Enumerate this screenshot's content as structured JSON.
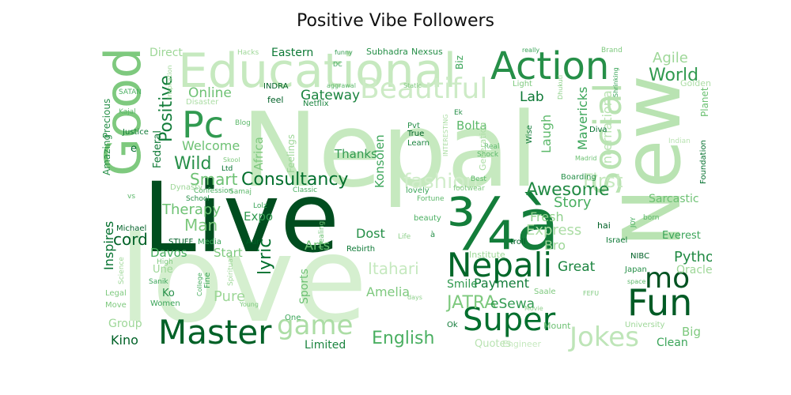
{
  "chart_data": {
    "type": "wordcloud",
    "title": "Positive Vibe Followers",
    "colormap": "Greens",
    "words": [
      {
        "text": "Nepal",
        "weight": 1.0,
        "shade": 0.15
      },
      {
        "text": "Live",
        "weight": 0.95,
        "shade": 0.97
      },
      {
        "text": "love",
        "weight": 0.8,
        "shade": 0.08
      },
      {
        "text": "New",
        "weight": 0.85,
        "shade": 0.2
      },
      {
        "text": "Educational",
        "weight": 0.55,
        "shade": 0.15
      },
      {
        "text": "Good",
        "weight": 0.55,
        "shade": 0.4
      },
      {
        "text": "Action",
        "weight": 0.4,
        "shade": 0.7
      },
      {
        "text": "¾à",
        "weight": 0.6,
        "shade": 0.78
      },
      {
        "text": "Social",
        "weight": 0.45,
        "shade": 0.2
      },
      {
        "text": "Nepali",
        "weight": 0.35,
        "shade": 0.88
      },
      {
        "text": "Fun",
        "weight": 0.4,
        "shade": 0.92
      },
      {
        "text": "Master",
        "weight": 0.35,
        "shade": 0.9
      },
      {
        "text": "Super",
        "weight": 0.32,
        "shade": 0.85
      },
      {
        "text": "mo",
        "weight": 0.3,
        "shade": 0.95
      },
      {
        "text": "Pc",
        "weight": 0.35,
        "shade": 0.65
      },
      {
        "text": "Beautiful",
        "weight": 0.3,
        "shade": 0.12
      },
      {
        "text": "Jokes",
        "weight": 0.28,
        "shade": 0.18
      },
      {
        "text": "game",
        "weight": 0.28,
        "shade": 0.25
      },
      {
        "text": "Consultancy",
        "weight": 0.2,
        "shade": 0.85
      },
      {
        "text": "Awesome",
        "weight": 0.2,
        "shade": 0.72
      },
      {
        "text": "World",
        "weight": 0.2,
        "shade": 0.65
      },
      {
        "text": "Python",
        "weight": 0.18,
        "shade": 0.72
      },
      {
        "text": "Positive",
        "weight": 0.18,
        "shade": 0.78
      },
      {
        "text": "English",
        "weight": 0.18,
        "shade": 0.55
      },
      {
        "text": "JATRA",
        "weight": 0.18,
        "shade": 0.4
      },
      {
        "text": "Wild",
        "weight": 0.16,
        "shade": 0.7
      },
      {
        "text": "Smart",
        "weight": 0.16,
        "shade": 0.45
      },
      {
        "text": "Therapy",
        "weight": 0.15,
        "shade": 0.45
      },
      {
        "text": "Man",
        "weight": 0.16,
        "shade": 0.4
      },
      {
        "text": "Agile",
        "weight": 0.13,
        "shade": 0.3
      },
      {
        "text": "Lab",
        "weight": 0.12,
        "shade": 0.8
      },
      {
        "text": "Gateway",
        "weight": 0.13,
        "shade": 0.75
      },
      {
        "text": "Online",
        "weight": 0.13,
        "shade": 0.45
      },
      {
        "text": "Welcome",
        "weight": 0.13,
        "shade": 0.45
      },
      {
        "text": "Eastern",
        "weight": 0.12,
        "shade": 0.8
      },
      {
        "text": "Direct",
        "weight": 0.12,
        "shade": 0.3
      },
      {
        "text": "Laugh",
        "weight": 0.12,
        "shade": 0.5
      },
      {
        "text": "Mavericks",
        "weight": 0.12,
        "shade": 0.6
      },
      {
        "text": "International",
        "weight": 0.12,
        "shade": 0.2
      },
      {
        "text": "fashion",
        "weight": 0.15,
        "shade": 0.1
      },
      {
        "text": "First",
        "weight": 0.15,
        "shade": 0.15
      },
      {
        "text": "Story",
        "weight": 0.12,
        "shade": 0.55
      },
      {
        "text": "Fresh",
        "weight": 0.12,
        "shade": 0.35
      },
      {
        "text": "Express",
        "weight": 0.12,
        "shade": 0.25
      },
      {
        "text": "Bro",
        "weight": 0.12,
        "shade": 0.3
      },
      {
        "text": "Great",
        "weight": 0.13,
        "shade": 0.75
      },
      {
        "text": "Payment",
        "weight": 0.12,
        "shade": 0.78
      },
      {
        "text": "Smile",
        "weight": 0.11,
        "shade": 0.65
      },
      {
        "text": "eSewa",
        "weight": 0.12,
        "shade": 0.65
      },
      {
        "text": "Amelia",
        "weight": 0.11,
        "shade": 0.4
      },
      {
        "text": "Itahari",
        "weight": 0.12,
        "shade": 0.15
      },
      {
        "text": "Limited",
        "weight": 0.1,
        "shade": 0.75
      },
      {
        "text": "Kino",
        "weight": 0.11,
        "shade": 0.9
      },
      {
        "text": "Group",
        "weight": 0.11,
        "shade": 0.3
      },
      {
        "text": "Pure",
        "weight": 0.12,
        "shade": 0.3
      },
      {
        "text": "Davos",
        "weight": 0.11,
        "shade": 0.55
      },
      {
        "text": "Start",
        "weight": 0.11,
        "shade": 0.4
      },
      {
        "text": "lyric",
        "weight": 0.13,
        "shade": 0.85
      },
      {
        "text": "Arts",
        "weight": 0.11,
        "shade": 0.45
      },
      {
        "text": "Dost",
        "weight": 0.11,
        "shade": 0.7
      },
      {
        "text": "Expo",
        "weight": 0.11,
        "shade": 0.65
      },
      {
        "text": "cord",
        "weight": 0.13,
        "shade": 0.9
      },
      {
        "text": "Inspires",
        "weight": 0.12,
        "shade": 0.85
      },
      {
        "text": "Thanks",
        "weight": 0.11,
        "shade": 0.65
      },
      {
        "text": "Konsolen",
        "weight": 0.11,
        "shade": 0.6
      },
      {
        "text": "Bolta",
        "weight": 0.11,
        "shade": 0.5
      },
      {
        "text": "Africa",
        "weight": 0.11,
        "shade": 0.4
      },
      {
        "text": "Sports",
        "weight": 0.11,
        "shade": 0.45
      },
      {
        "text": "Clean",
        "weight": 0.1,
        "shade": 0.6
      },
      {
        "text": "Big",
        "weight": 0.1,
        "shade": 0.4
      },
      {
        "text": "Everest",
        "weight": 0.09,
        "shade": 0.6
      },
      {
        "text": "Sarcastic",
        "weight": 0.1,
        "shade": 0.45
      },
      {
        "text": "Foundation",
        "weight": 0.08,
        "shade": 0.85
      },
      {
        "text": "Planet",
        "weight": 0.08,
        "shade": 0.45
      },
      {
        "text": "Biz",
        "weight": 0.09,
        "shade": 0.6
      },
      {
        "text": "Federal",
        "weight": 0.09,
        "shade": 0.8
      },
      {
        "text": "Precious",
        "weight": 0.08,
        "shade": 0.7
      },
      {
        "text": "Amazing",
        "weight": 0.08,
        "shade": 0.7
      },
      {
        "text": "Quotes",
        "weight": 0.08,
        "shade": 0.2
      },
      {
        "text": "Engineer",
        "weight": 0.07,
        "shade": 0.15
      },
      {
        "text": "Subhadra",
        "weight": 0.07,
        "shade": 0.7
      },
      {
        "text": "Nexsus",
        "weight": 0.07,
        "shade": 0.7
      },
      {
        "text": "Israel",
        "weight": 0.07,
        "shade": 0.8
      },
      {
        "text": "NIBC",
        "weight": 0.07,
        "shade": 0.9
      },
      {
        "text": "Japan",
        "weight": 0.07,
        "shade": 0.7
      },
      {
        "text": "Michael",
        "weight": 0.07,
        "shade": 0.9
      },
      {
        "text": "Women",
        "weight": 0.07,
        "shade": 0.6
      },
      {
        "text": "Move",
        "weight": 0.07,
        "shade": 0.4
      },
      {
        "text": "Legal",
        "weight": 0.07,
        "shade": 0.4
      },
      {
        "text": "Media",
        "weight": 0.07,
        "shade": 0.6
      },
      {
        "text": "STUFF",
        "weight": 0.06,
        "shade": 0.9
      },
      {
        "text": "Aur",
        "weight": 0.06,
        "shade": 0.9
      },
      {
        "text": "Rebirth",
        "weight": 0.06,
        "shade": 0.8
      },
      {
        "text": "Institute",
        "weight": 0.07,
        "shade": 0.3
      },
      {
        "text": "Mount",
        "weight": 0.07,
        "shade": 0.45
      },
      {
        "text": "troll",
        "weight": 0.06,
        "shade": 0.9
      },
      {
        "text": "hai",
        "weight": 0.07,
        "shade": 0.9
      },
      {
        "text": "Ok",
        "weight": 0.06,
        "shade": 0.8
      },
      {
        "text": "One",
        "weight": 0.06,
        "shade": 0.6
      },
      {
        "text": "INDRA",
        "weight": 0.06,
        "shade": 0.9
      },
      {
        "text": "feel",
        "weight": 0.07,
        "shade": 0.9
      },
      {
        "text": "Netflix",
        "weight": 0.06,
        "shade": 0.75
      },
      {
        "text": "True",
        "weight": 0.06,
        "shade": 0.9
      },
      {
        "text": "Learn",
        "weight": 0.06,
        "shade": 0.75
      },
      {
        "text": "Pvt",
        "weight": 0.06,
        "shade": 0.7
      },
      {
        "text": "Diva",
        "weight": 0.06,
        "shade": 0.85
      },
      {
        "text": "Wise",
        "weight": 0.06,
        "shade": 0.8
      },
      {
        "text": "Boarding",
        "weight": 0.06,
        "shade": 0.7
      },
      {
        "text": "lovely",
        "weight": 0.06,
        "shade": 0.6
      },
      {
        "text": "beauty",
        "weight": 0.06,
        "shade": 0.55
      },
      {
        "text": "Healing",
        "weight": 0.06,
        "shade": 0.45
      },
      {
        "text": "Confession",
        "weight": 0.06,
        "shade": 0.55
      },
      {
        "text": "Classic",
        "weight": 0.06,
        "shade": 0.55
      },
      {
        "text": "School",
        "weight": 0.06,
        "shade": 0.7
      },
      {
        "text": "Lolz",
        "weight": 0.06,
        "shade": 0.6
      },
      {
        "text": "Justice",
        "weight": 0.06,
        "shade": 0.8
      },
      {
        "text": "SATAN",
        "weight": 0.06,
        "shade": 0.55
      },
      {
        "text": "Kajal",
        "weight": 0.06,
        "shade": 0.5
      },
      {
        "text": "Sanik",
        "weight": 0.06,
        "shade": 0.6
      },
      {
        "text": "Ltd",
        "weight": 0.06,
        "shade": 0.85
      },
      {
        "text": "DC",
        "weight": 0.06,
        "shade": 0.6
      },
      {
        "text": "funny",
        "weight": 0.06,
        "shade": 0.65
      },
      {
        "text": "aggrawal",
        "weight": 0.06,
        "shade": 0.5
      },
      {
        "text": "really",
        "weight": 0.06,
        "shade": 0.6
      },
      {
        "text": "Static",
        "weight": 0.06,
        "shade": 0.4
      },
      {
        "text": "Light",
        "weight": 0.06,
        "shade": 0.4
      },
      {
        "text": "Brand",
        "weight": 0.06,
        "shade": 0.4
      },
      {
        "text": "Hacks",
        "weight": 0.06,
        "shade": 0.3
      },
      {
        "text": "Ek",
        "weight": 0.06,
        "shade": 0.7
      },
      {
        "text": "Real",
        "weight": 0.06,
        "shade": 0.5
      },
      {
        "text": "Shock",
        "weight": 0.06,
        "shade": 0.5
      },
      {
        "text": "Best",
        "weight": 0.06,
        "shade": 0.5
      },
      {
        "text": "Fortune",
        "weight": 0.06,
        "shade": 0.5
      },
      {
        "text": "footwear",
        "weight": 0.06,
        "shade": 0.4
      },
      {
        "text": "space",
        "weight": 0.06,
        "shade": 0.5
      },
      {
        "text": "born",
        "weight": 0.06,
        "shade": 0.5
      },
      {
        "text": "JOY",
        "weight": 0.06,
        "shade": 0.55
      },
      {
        "text": "Madrid",
        "weight": 0.06,
        "shade": 0.45
      },
      {
        "text": "Shrinking",
        "weight": 0.06,
        "shade": 0.6
      },
      {
        "text": "days",
        "weight": 0.05,
        "shade": 0.35
      },
      {
        "text": "Life",
        "weight": 0.05,
        "shade": 0.35
      },
      {
        "text": "Saale",
        "weight": 0.06,
        "shade": 0.4
      },
      {
        "text": "Movie",
        "weight": 0.05,
        "shade": 0.35
      },
      {
        "text": "FEFU",
        "weight": 0.05,
        "shade": 0.4
      },
      {
        "text": "University",
        "weight": 0.06,
        "shade": 0.3
      },
      {
        "text": "Oracle",
        "weight": 0.06,
        "shade": 0.3
      },
      {
        "text": "Golden",
        "weight": 0.06,
        "shade": 0.25
      },
      {
        "text": "Indian",
        "weight": 0.06,
        "shade": 0.2
      },
      {
        "text": "Disaster",
        "weight": 0.06,
        "shade": 0.25
      },
      {
        "text": "Feelings",
        "weight": 0.07,
        "shade": 0.3
      },
      {
        "text": "INTERESTING",
        "weight": 0.05,
        "shade": 0.25
      },
      {
        "text": "Generation",
        "weight": 0.06,
        "shade": 0.25
      },
      {
        "text": "Samaj",
        "weight": 0.05,
        "shade": 0.5
      },
      {
        "text": "Blog",
        "weight": 0.05,
        "shade": 0.5
      },
      {
        "text": "Skool",
        "weight": 0.05,
        "shade": 0.4
      },
      {
        "text": "Dynasty",
        "weight": 0.05,
        "shade": 0.3
      },
      {
        "text": "Science",
        "weight": 0.05,
        "shade": 0.3
      },
      {
        "text": "High",
        "weight": 0.05,
        "shade": 0.4
      },
      {
        "text": "Spiritual",
        "weight": 0.05,
        "shade": 0.3
      },
      {
        "text": "Young",
        "weight": 0.05,
        "shade": 0.4
      },
      {
        "text": "Fine",
        "weight": 0.05,
        "shade": 0.6
      },
      {
        "text": "College",
        "weight": 0.05,
        "shade": 0.55
      },
      {
        "text": "Inspiration",
        "weight": 0.05,
        "shade": 0.3
      },
      {
        "text": "Ko",
        "weight": 0.07,
        "shade": 0.7
      },
      {
        "text": "Une",
        "weight": 0.07,
        "shade": 0.3
      },
      {
        "text": "vs",
        "weight": 0.05,
        "shade": 0.5
      },
      {
        "text": "e",
        "weight": 0.06,
        "shade": 0.85
      },
      {
        "text": "à",
        "weight": 0.05,
        "shade": 0.7
      },
      {
        "text": "Dhukuti",
        "weight": 0.05,
        "shade": 0.35
      }
    ]
  }
}
